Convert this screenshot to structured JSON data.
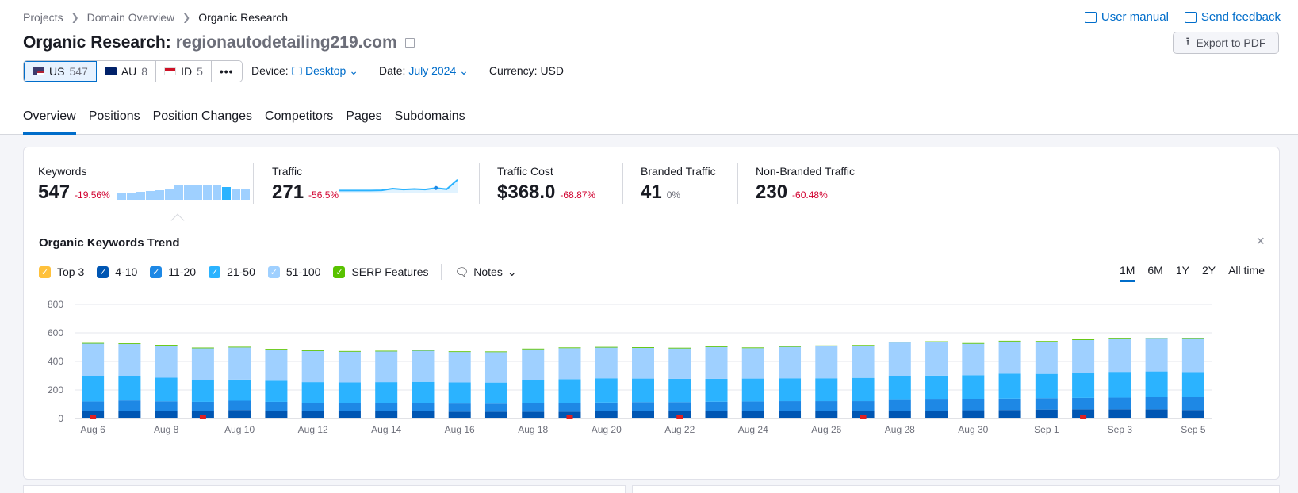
{
  "breadcrumb": [
    "Projects",
    "Domain Overview",
    "Organic Research"
  ],
  "top_links": {
    "manual": "User manual",
    "feedback": "Send feedback"
  },
  "title": {
    "prefix": "Organic Research:",
    "domain": "regionautodetailing219.com"
  },
  "export_label": "Export to PDF",
  "databases": [
    {
      "code": "US",
      "count": "547"
    },
    {
      "code": "AU",
      "count": "8"
    },
    {
      "code": "ID",
      "count": "5"
    }
  ],
  "more_label": "•••",
  "filters": {
    "device_label": "Device:",
    "device_value": "Desktop",
    "date_label": "Date:",
    "date_value": "July 2024",
    "currency": "Currency: USD"
  },
  "tabs": [
    "Overview",
    "Positions",
    "Position Changes",
    "Competitors",
    "Pages",
    "Subdomains"
  ],
  "metrics": [
    {
      "label": "Keywords",
      "value": "547",
      "change": "-19.56%"
    },
    {
      "label": "Traffic",
      "value": "271",
      "change": "-56.5%"
    },
    {
      "label": "Traffic Cost",
      "value": "$368.0",
      "change": "-68.87%"
    },
    {
      "label": "Branded Traffic",
      "value": "41",
      "change": "0%"
    },
    {
      "label": "Non-Branded Traffic",
      "value": "230",
      "change": "-60.48%"
    }
  ],
  "keywords_sparkline": [
    0.45,
    0.45,
    0.5,
    0.55,
    0.62,
    0.7,
    0.88,
    0.95,
    0.95,
    0.95,
    0.88,
    0.78,
    0.72,
    0.72
  ],
  "traffic_sparkline": [
    0.1,
    0.1,
    0.1,
    0.1,
    0.12,
    0.25,
    0.18,
    0.22,
    0.18,
    0.3,
    0.2,
    0.95
  ],
  "trend": {
    "title": "Organic Keywords Trend",
    "close": "×",
    "legend": [
      {
        "label": "Top 3",
        "color": "#ffc13b"
      },
      {
        "label": "4-10",
        "color": "#0056b3"
      },
      {
        "label": "11-20",
        "color": "#1e88e5"
      },
      {
        "label": "21-50",
        "color": "#2bb3ff"
      },
      {
        "label": "51-100",
        "color": "#9fd0ff"
      },
      {
        "label": "SERP Features",
        "color": "#59c200"
      }
    ],
    "notes_label": "Notes",
    "periods": [
      "1M",
      "6M",
      "1Y",
      "2Y",
      "All time"
    ]
  },
  "chart_data": {
    "type": "bar",
    "stacked": true,
    "yticks": [
      0,
      200,
      400,
      600,
      800
    ],
    "ylim": [
      0,
      800
    ],
    "xtick_labels": [
      "Aug 6",
      "Aug 8",
      "Aug 10",
      "Aug 12",
      "Aug 14",
      "Aug 16",
      "Aug 18",
      "Aug 20",
      "Aug 22",
      "Aug 24",
      "Aug 26",
      "Aug 28",
      "Aug 30",
      "Sep 1",
      "Sep 3",
      "Sep 5"
    ],
    "categories": [
      "Aug 6",
      "Aug 7",
      "Aug 8",
      "Aug 9",
      "Aug 10",
      "Aug 11",
      "Aug 12",
      "Aug 13",
      "Aug 14",
      "Aug 15",
      "Aug 16",
      "Aug 17",
      "Aug 18",
      "Aug 19",
      "Aug 20",
      "Aug 21",
      "Aug 22",
      "Aug 23",
      "Aug 24",
      "Aug 25",
      "Aug 26",
      "Aug 27",
      "Aug 28",
      "Aug 29",
      "Aug 30",
      "Aug 31",
      "Sep 1",
      "Sep 2",
      "Sep 3",
      "Sep 4",
      "Sep 5"
    ],
    "series": [
      {
        "name": "Top 3",
        "color": "#ffc13b",
        "values": [
          5,
          5,
          5,
          5,
          5,
          5,
          5,
          5,
          5,
          5,
          5,
          5,
          5,
          5,
          5,
          5,
          5,
          5,
          5,
          5,
          5,
          5,
          5,
          5,
          5,
          5,
          5,
          5,
          5,
          5,
          5
        ]
      },
      {
        "name": "4-10",
        "color": "#0056b3",
        "values": [
          45,
          50,
          48,
          47,
          55,
          50,
          45,
          45,
          45,
          45,
          43,
          43,
          43,
          43,
          45,
          45,
          45,
          45,
          45,
          45,
          45,
          45,
          50,
          50,
          53,
          55,
          58,
          60,
          60,
          60,
          55
        ]
      },
      {
        "name": "11-20",
        "color": "#1e88e5",
        "values": [
          70,
          72,
          68,
          65,
          65,
          62,
          60,
          58,
          57,
          57,
          57,
          56,
          58,
          60,
          62,
          65,
          65,
          68,
          70,
          72,
          72,
          72,
          75,
          78,
          78,
          80,
          80,
          80,
          82,
          85,
          90
        ]
      },
      {
        "name": "21-50",
        "color": "#2bb3ff",
        "values": [
          180,
          170,
          165,
          155,
          148,
          148,
          145,
          145,
          148,
          150,
          148,
          148,
          162,
          168,
          170,
          165,
          163,
          160,
          160,
          160,
          160,
          163,
          170,
          168,
          168,
          175,
          170,
          175,
          180,
          180,
          175
        ]
      },
      {
        "name": "51-100",
        "color": "#9fd0ff",
        "values": [
          225,
          225,
          225,
          220,
          225,
          218,
          218,
          215,
          215,
          218,
          213,
          213,
          217,
          217,
          215,
          215,
          213,
          223,
          213,
          220,
          225,
          225,
          233,
          235,
          220,
          225,
          225,
          230,
          230,
          230,
          233
        ]
      },
      {
        "name": "SERP Features",
        "color": "#59c200",
        "values": [
          5,
          5,
          5,
          5,
          5,
          5,
          5,
          5,
          5,
          5,
          5,
          5,
          5,
          5,
          5,
          5,
          5,
          5,
          5,
          5,
          5,
          5,
          5,
          5,
          5,
          5,
          5,
          5,
          5,
          5,
          5
        ]
      }
    ],
    "note_markers": [
      "Aug 6",
      "Aug 9",
      "Aug 19",
      "Aug 22",
      "Aug 27",
      "Sep 2"
    ],
    "grid": true
  }
}
